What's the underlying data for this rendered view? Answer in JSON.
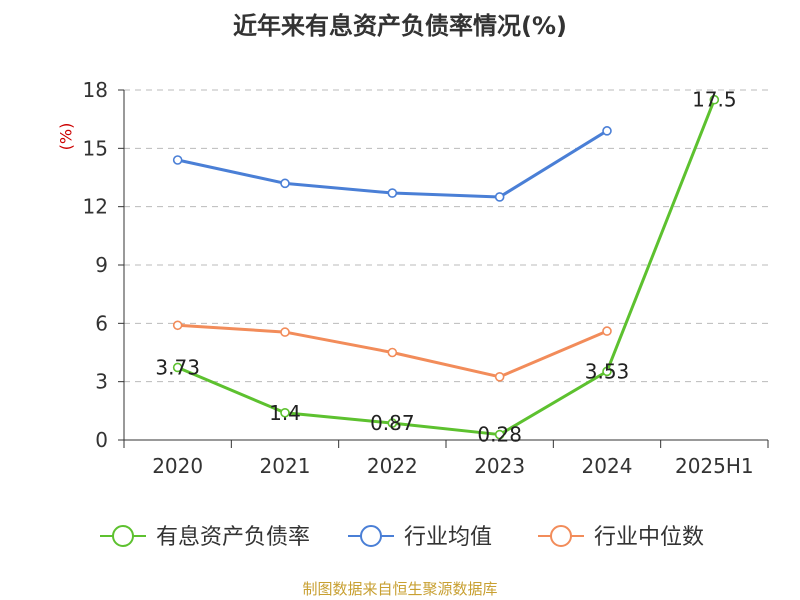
{
  "chart_data": {
    "type": "line",
    "title": "近年来有息资产负债率情况(%)",
    "ylabel": "(%)",
    "xlabel": "",
    "categories": [
      "2020",
      "2021",
      "2022",
      "2023",
      "2024",
      "2025H1"
    ],
    "ylim": [
      0,
      18
    ],
    "yticks": [
      0,
      3,
      6,
      9,
      12,
      15,
      18
    ],
    "grid": true,
    "legend_position": "bottom",
    "series": [
      {
        "name": "有息资产负债率",
        "color": "#5dc12f",
        "values": [
          3.73,
          1.4,
          0.87,
          0.28,
          3.53,
          17.5
        ],
        "labels": [
          "3.73",
          "1.4",
          "0.87",
          "0.28",
          "3.53",
          "17.5"
        ]
      },
      {
        "name": "行业均值",
        "color": "#4a7fd6",
        "values": [
          14.4,
          13.2,
          12.7,
          12.5,
          15.9,
          null
        ]
      },
      {
        "name": "行业中位数",
        "color": "#f28c5a",
        "values": [
          5.9,
          5.55,
          4.5,
          3.25,
          5.6,
          null
        ]
      }
    ]
  },
  "source": "制图数据来自恒生聚源数据库"
}
